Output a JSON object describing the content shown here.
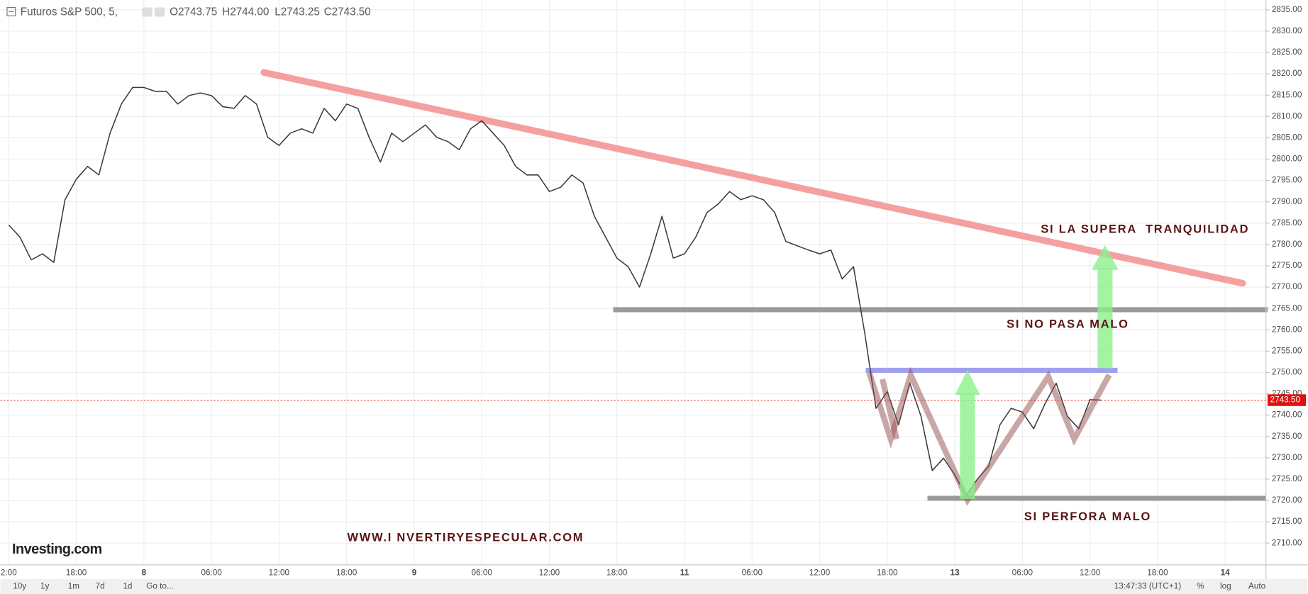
{
  "chart_data": {
    "type": "line",
    "header": {
      "symbol": "Futuros S&P 500, 5,",
      "open": "O2743.75",
      "high": "H2744.00",
      "low": "L2743.25",
      "close": "C2743.50"
    },
    "x": [
      "2:00",
      null,
      null,
      null,
      null,
      null,
      "18:00",
      null,
      null,
      null,
      null,
      null,
      "8",
      null,
      null,
      null,
      null,
      null,
      "06:00",
      null,
      null,
      null,
      null,
      null,
      "12:00",
      null,
      null,
      null,
      null,
      null,
      "18:00",
      null,
      null,
      null,
      null,
      null,
      "9",
      null,
      null,
      null,
      null,
      null,
      "06:00",
      null,
      null,
      null,
      null,
      null,
      "12:00",
      null,
      null,
      null,
      null,
      null,
      "18:00",
      null,
      null,
      null,
      null,
      null,
      "11",
      null,
      null,
      null,
      null,
      null,
      "06:00",
      null,
      null,
      null,
      null,
      null,
      "12:00",
      null,
      null,
      null,
      null,
      null,
      "18:00",
      null,
      null,
      null,
      null,
      null,
      "13",
      null,
      null,
      null,
      null,
      null,
      "06:00",
      null,
      null,
      null,
      null,
      null,
      "12:00",
      null,
      null,
      null,
      null,
      null,
      "18:00",
      null,
      null,
      null,
      null,
      null,
      "14",
      null,
      null
    ],
    "series": [
      {
        "name": "Futuros S&P 500",
        "color": "#3a3a3a",
        "values": [
          2784.6,
          2781.7,
          2776.4,
          2777.8,
          2775.8,
          2790.5,
          2795.3,
          2798.3,
          2796.3,
          2806.1,
          2812.9,
          2816.8,
          2816.8,
          2815.9,
          2815.9,
          2812.9,
          2814.9,
          2815.5,
          2814.9,
          2812.3,
          2811.9,
          2814.9,
          2812.9,
          2805.1,
          2803.2,
          2806.1,
          2807.1,
          2806.1,
          2811.9,
          2809.0,
          2812.9,
          2811.9,
          2805.1,
          2799.3,
          2806.1,
          2804.1,
          2806.1,
          2808.0,
          2805.1,
          2804.1,
          2802.2,
          2807.1,
          2809.0,
          2806.1,
          2803.2,
          2798.3,
          2796.3,
          2796.3,
          2792.4,
          2793.4,
          2796.3,
          2794.4,
          2786.6,
          2781.7,
          2776.8,
          2774.8,
          2770.0,
          2777.8,
          2786.6,
          2776.8,
          2777.8,
          2781.7,
          2787.5,
          2789.5,
          2792.4,
          2790.5,
          2791.4,
          2790.5,
          2787.5,
          2780.7,
          2779.7,
          2778.7,
          2777.8,
          2778.7,
          2771.9,
          2774.8,
          2759.2,
          2741.6,
          2745.5,
          2737.7,
          2747.5,
          2739.7,
          2727.0,
          2729.9,
          2726.0,
          2721.1,
          2725.0,
          2728.0,
          2737.7,
          2741.6,
          2740.7,
          2736.8,
          2742.6,
          2747.5,
          2739.7,
          2736.8,
          2743.6,
          2743.5,
          null,
          null,
          null,
          null,
          null,
          null,
          null,
          null,
          null,
          null,
          null,
          null,
          null
        ]
      }
    ],
    "ylim": [
      2704.9,
      2837.3
    ],
    "yticks": [
      {
        "value": 2710,
        "label": "2710.00"
      },
      {
        "value": 2715,
        "label": "2715.00"
      },
      {
        "value": 2720,
        "label": "2720.00"
      },
      {
        "value": 2725,
        "label": "2725.00"
      },
      {
        "value": 2730,
        "label": "2730.00"
      },
      {
        "value": 2735,
        "label": "2735.00"
      },
      {
        "value": 2740,
        "label": "2740.00"
      },
      {
        "value": 2745,
        "label": "2745.00"
      },
      {
        "value": 2750,
        "label": "2750.00"
      },
      {
        "value": 2755,
        "label": "2755.00"
      },
      {
        "value": 2760,
        "label": "2760.00"
      },
      {
        "value": 2765,
        "label": "2765.00"
      },
      {
        "value": 2770,
        "label": "2770.00"
      },
      {
        "value": 2775,
        "label": "2775.00"
      },
      {
        "value": 2780,
        "label": "2780.00"
      },
      {
        "value": 2785,
        "label": "2785.00"
      },
      {
        "value": 2790,
        "label": "2790.00"
      },
      {
        "value": 2795,
        "label": "2795.00"
      },
      {
        "value": 2800,
        "label": "2800.00"
      },
      {
        "value": 2805,
        "label": "2805.00"
      },
      {
        "value": 2810,
        "label": "2810.00"
      },
      {
        "value": 2815,
        "label": "2815.00"
      },
      {
        "value": 2820,
        "label": "2820.00"
      },
      {
        "value": 2825,
        "label": "2825.00"
      },
      {
        "value": 2830,
        "label": "2830.00"
      },
      {
        "value": 2835,
        "label": "2835.00"
      }
    ],
    "grid": true,
    "last_price": {
      "value": 2743.5,
      "label": "2743.50",
      "color": "#e01010"
    },
    "levels": [
      {
        "value": 2764.7,
        "color": "#9a9a9a"
      },
      {
        "value": 2750.5,
        "color": "#a0a0f0"
      },
      {
        "value": 2720.5,
        "color": "#9a9a9a"
      }
    ],
    "annotations": [
      "SI LA SUPERA  TRANQUILIDAD",
      "SI NO PASA MALO",
      "SI PERFORA MALO",
      "WWW.I NVERTIRYESPECULAR.COM"
    ],
    "logo": "Investing.com",
    "toolbar": {
      "ranges": [
        "10y",
        "1y",
        "1m",
        "7d",
        "1d",
        "Go to..."
      ],
      "clock": "13:47:33 (UTC+1)",
      "options": [
        "%",
        "log",
        "Auto"
      ]
    }
  }
}
